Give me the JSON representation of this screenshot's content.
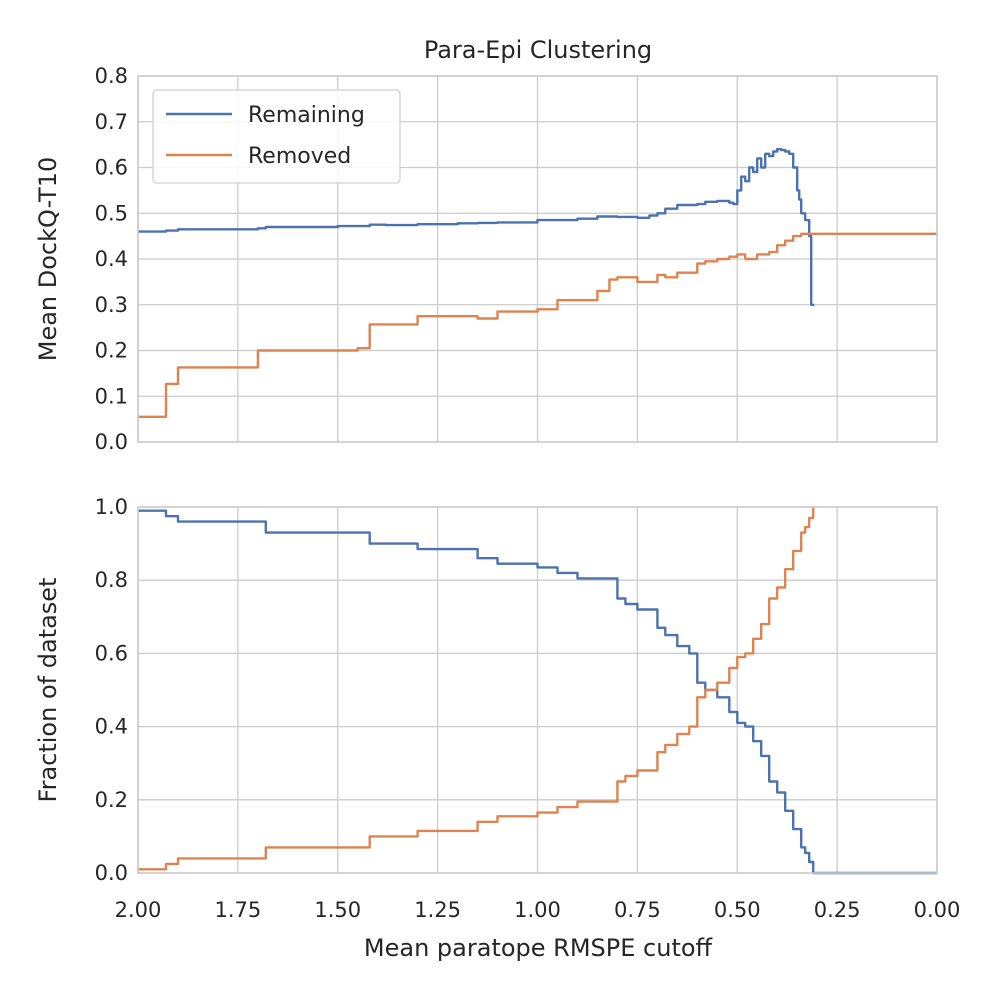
{
  "figure": {
    "title": "Para-Epi Clustering",
    "xlabel": "Mean paratope RMSPE cutoff"
  },
  "colors": {
    "remaining": "#4c72b0",
    "removed": "#dd8452"
  },
  "chart_data": [
    {
      "type": "line",
      "title": "Para-Epi Clustering",
      "xlabel": "",
      "ylabel": "Mean DockQ-T10",
      "xlim": [
        2.0,
        0.0
      ],
      "ylim": [
        0.0,
        0.8
      ],
      "x_inverted": true,
      "yticks": [
        "0.0",
        "0.1",
        "0.2",
        "0.3",
        "0.4",
        "0.5",
        "0.6",
        "0.7",
        "0.8"
      ],
      "grid": true,
      "legend": {
        "placement": "top-left",
        "entries": [
          "Remaining",
          "Removed"
        ]
      },
      "series": [
        {
          "name": "Remaining",
          "color": "#4c72b0",
          "step": true,
          "x": [
            2.0,
            1.93,
            1.9,
            1.7,
            1.68,
            1.5,
            1.45,
            1.42,
            1.38,
            1.3,
            1.2,
            1.15,
            1.1,
            1.0,
            0.95,
            0.9,
            0.85,
            0.8,
            0.75,
            0.72,
            0.7,
            0.68,
            0.65,
            0.6,
            0.58,
            0.55,
            0.52,
            0.51,
            0.5,
            0.49,
            0.48,
            0.47,
            0.46,
            0.45,
            0.44,
            0.43,
            0.42,
            0.41,
            0.4,
            0.39,
            0.38,
            0.37,
            0.36,
            0.35,
            0.345,
            0.34,
            0.33,
            0.32,
            0.315,
            0.31
          ],
          "values": [
            0.46,
            0.462,
            0.465,
            0.467,
            0.47,
            0.472,
            0.472,
            0.475,
            0.474,
            0.476,
            0.478,
            0.479,
            0.48,
            0.485,
            0.485,
            0.488,
            0.493,
            0.492,
            0.49,
            0.495,
            0.5,
            0.51,
            0.518,
            0.52,
            0.525,
            0.527,
            0.523,
            0.52,
            0.55,
            0.58,
            0.57,
            0.6,
            0.59,
            0.62,
            0.6,
            0.63,
            0.625,
            0.635,
            0.64,
            0.638,
            0.635,
            0.63,
            0.6,
            0.55,
            0.53,
            0.5,
            0.485,
            0.45,
            0.3,
            0.297
          ]
        },
        {
          "name": "Removed",
          "color": "#dd8452",
          "step": true,
          "x": [
            2.0,
            1.93,
            1.9,
            1.7,
            1.68,
            1.45,
            1.42,
            1.3,
            1.15,
            1.1,
            1.0,
            0.95,
            0.9,
            0.85,
            0.82,
            0.8,
            0.75,
            0.7,
            0.68,
            0.65,
            0.6,
            0.58,
            0.55,
            0.52,
            0.5,
            0.48,
            0.45,
            0.42,
            0.4,
            0.38,
            0.36,
            0.34,
            0.32,
            0.3,
            0.0
          ],
          "values": [
            0.055,
            0.127,
            0.163,
            0.2,
            0.2,
            0.205,
            0.257,
            0.275,
            0.27,
            0.285,
            0.29,
            0.31,
            0.31,
            0.33,
            0.355,
            0.36,
            0.35,
            0.365,
            0.36,
            0.37,
            0.39,
            0.395,
            0.4,
            0.405,
            0.41,
            0.4,
            0.41,
            0.415,
            0.43,
            0.44,
            0.45,
            0.455,
            0.455,
            0.455,
            0.455
          ]
        }
      ]
    },
    {
      "type": "line",
      "title": "",
      "xlabel": "Mean paratope RMSPE cutoff",
      "ylabel": "Fraction of dataset",
      "xlim": [
        2.0,
        0.0
      ],
      "ylim": [
        0.0,
        1.0
      ],
      "x_inverted": true,
      "xticks": [
        "2.00",
        "1.75",
        "1.50",
        "1.25",
        "1.00",
        "0.75",
        "0.50",
        "0.25",
        "0.00"
      ],
      "yticks": [
        "0.0",
        "0.2",
        "0.4",
        "0.6",
        "0.8",
        "1.0"
      ],
      "grid": true,
      "series": [
        {
          "name": "Remaining",
          "color": "#4c72b0",
          "step": true,
          "x": [
            2.0,
            1.93,
            1.9,
            1.7,
            1.68,
            1.45,
            1.42,
            1.3,
            1.15,
            1.1,
            1.0,
            0.95,
            0.9,
            0.85,
            0.8,
            0.78,
            0.75,
            0.7,
            0.68,
            0.65,
            0.62,
            0.6,
            0.58,
            0.55,
            0.52,
            0.5,
            0.48,
            0.46,
            0.44,
            0.42,
            0.4,
            0.38,
            0.36,
            0.34,
            0.33,
            0.32,
            0.31,
            0.0
          ],
          "values": [
            0.99,
            0.975,
            0.96,
            0.96,
            0.93,
            0.93,
            0.9,
            0.885,
            0.86,
            0.845,
            0.835,
            0.82,
            0.805,
            0.805,
            0.75,
            0.735,
            0.72,
            0.67,
            0.65,
            0.62,
            0.6,
            0.52,
            0.5,
            0.48,
            0.44,
            0.41,
            0.4,
            0.36,
            0.32,
            0.25,
            0.22,
            0.17,
            0.12,
            0.07,
            0.055,
            0.03,
            0.0,
            0.0
          ]
        },
        {
          "name": "Removed",
          "color": "#dd8452",
          "step": true,
          "x": [
            2.0,
            1.93,
            1.9,
            1.7,
            1.68,
            1.45,
            1.42,
            1.3,
            1.15,
            1.1,
            1.0,
            0.95,
            0.9,
            0.85,
            0.8,
            0.78,
            0.75,
            0.7,
            0.68,
            0.65,
            0.62,
            0.6,
            0.58,
            0.55,
            0.52,
            0.5,
            0.48,
            0.46,
            0.44,
            0.42,
            0.4,
            0.38,
            0.36,
            0.34,
            0.33,
            0.32,
            0.31
          ],
          "values": [
            0.01,
            0.025,
            0.04,
            0.04,
            0.07,
            0.07,
            0.1,
            0.115,
            0.14,
            0.155,
            0.165,
            0.18,
            0.195,
            0.195,
            0.25,
            0.265,
            0.28,
            0.33,
            0.35,
            0.38,
            0.4,
            0.48,
            0.5,
            0.52,
            0.56,
            0.59,
            0.6,
            0.64,
            0.68,
            0.75,
            0.78,
            0.83,
            0.88,
            0.93,
            0.945,
            0.97,
            1.0
          ]
        }
      ]
    }
  ]
}
